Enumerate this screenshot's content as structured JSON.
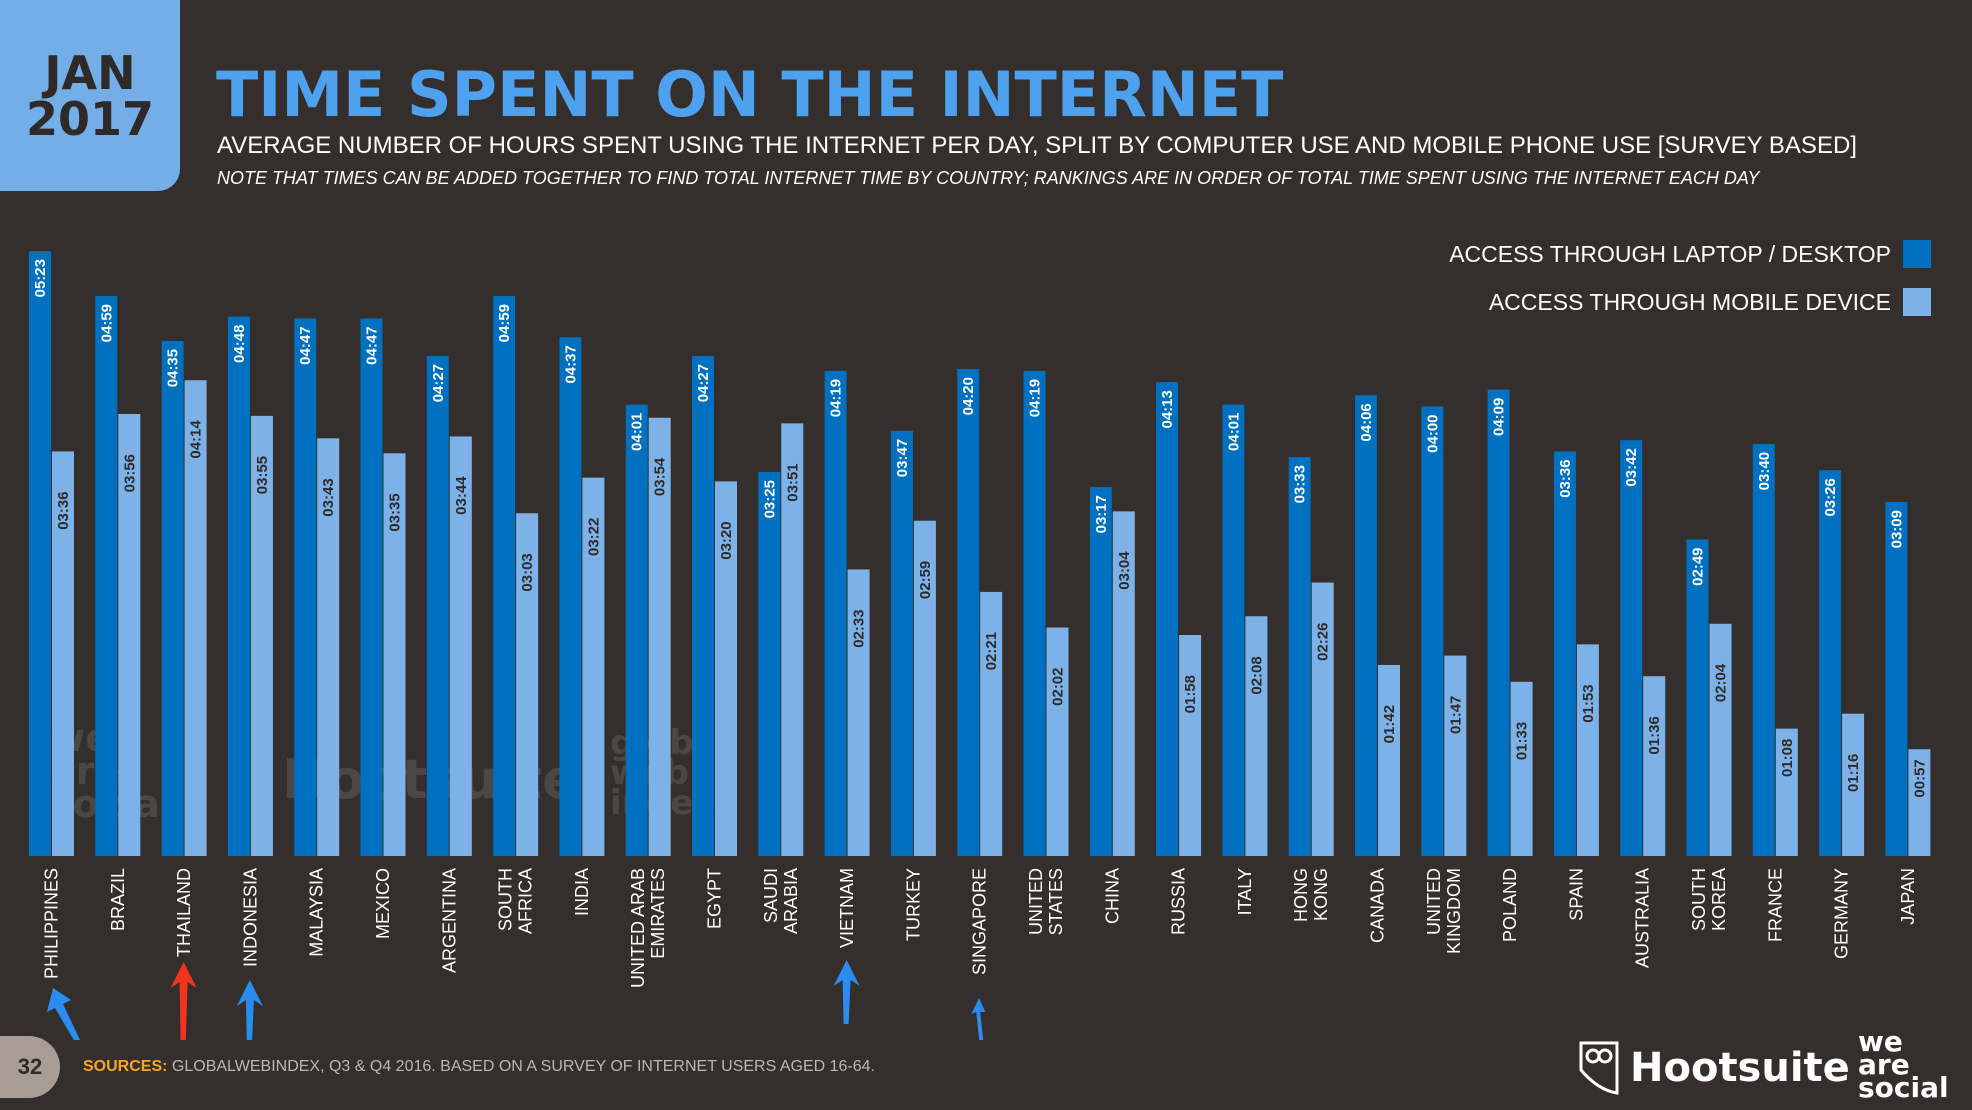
{
  "header": {
    "date_month": "JAN",
    "date_year": "2017",
    "title": "TIME SPENT ON THE INTERNET",
    "subtitle": "AVERAGE NUMBER OF HOURS SPENT USING THE INTERNET PER DAY, SPLIT BY COMPUTER USE AND MOBILE PHONE USE [SURVEY BASED]",
    "note": "NOTE THAT TIMES CAN BE ADDED TOGETHER TO FIND TOTAL INTERNET TIME BY COUNTRY; RANKINGS ARE IN ORDER OF TOTAL TIME SPENT USING THE INTERNET EACH DAY"
  },
  "footer": {
    "page_number": "32",
    "sources_label": "SOURCES:",
    "sources_text": "GLOBALWEBINDEX, Q3 & Q4 2016. BASED ON A SURVEY OF INTERNET USERS AGED 16-64.",
    "logo_hootsuite": "Hootsuite",
    "logo_was": "we are social"
  },
  "watermarks": {
    "was": "we are social",
    "hootsuite": "Hootsuite",
    "gwi": "global web index"
  },
  "colors": {
    "desktop": "#0070c0",
    "mobile": "#7db2e8",
    "background": "#342e2c",
    "title": "#4ea1ee",
    "arrow_blue": "#2b8cf0",
    "arrow_red": "#f0341e"
  },
  "annotations": {
    "arrows": [
      {
        "country": "PHILIPPINES",
        "color": "blue"
      },
      {
        "country": "THAILAND",
        "color": "red"
      },
      {
        "country": "INDONESIA",
        "color": "blue"
      },
      {
        "country": "VIETNAM",
        "color": "blue"
      },
      {
        "country": "SINGAPORE",
        "color": "blue"
      }
    ]
  },
  "chart_data": {
    "type": "bar",
    "unit": "hours:minutes per day",
    "legend_placement": "top-right",
    "grid": false,
    "categories": [
      "PHILIPPINES",
      "BRAZIL",
      "THAILAND",
      "INDONESIA",
      "MALAYSIA",
      "MEXICO",
      "ARGENTINA",
      "SOUTH AFRICA",
      "INDIA",
      "UNITED ARAB EMIRATES",
      "EGYPT",
      "SAUDI ARABIA",
      "VIETNAM",
      "TURKEY",
      "SINGAPORE",
      "UNITED STATES",
      "CHINA",
      "RUSSIA",
      "ITALY",
      "HONG KONG",
      "CANADA",
      "UNITED KINGDOM",
      "POLAND",
      "SPAIN",
      "AUSTRALIA",
      "SOUTH KOREA",
      "FRANCE",
      "GERMANY",
      "JAPAN"
    ],
    "series": [
      {
        "name": "ACCESS THROUGH LAPTOP / DESKTOP",
        "values": [
          "05:23",
          "04:59",
          "04:35",
          "04:48",
          "04:47",
          "04:47",
          "04:27",
          "04:59",
          "04:37",
          "04:01",
          "04:27",
          "03:25",
          "04:19",
          "03:47",
          "04:20",
          "04:19",
          "03:17",
          "04:13",
          "04:01",
          "03:33",
          "04:06",
          "04:00",
          "04:09",
          "03:36",
          "03:42",
          "02:49",
          "03:40",
          "03:26",
          "03:09"
        ]
      },
      {
        "name": "ACCESS THROUGH MOBILE DEVICE",
        "values": [
          "03:36",
          "03:56",
          "04:14",
          "03:55",
          "03:43",
          "03:35",
          "03:44",
          "03:03",
          "03:22",
          "03:54",
          "03:20",
          "03:51",
          "02:33",
          "02:59",
          "02:21",
          "02:02",
          "03:04",
          "01:58",
          "02:08",
          "02:26",
          "01:42",
          "01:47",
          "01:33",
          "01:53",
          "01:36",
          "02:04",
          "01:08",
          "01:16",
          "00:57"
        ]
      }
    ]
  }
}
